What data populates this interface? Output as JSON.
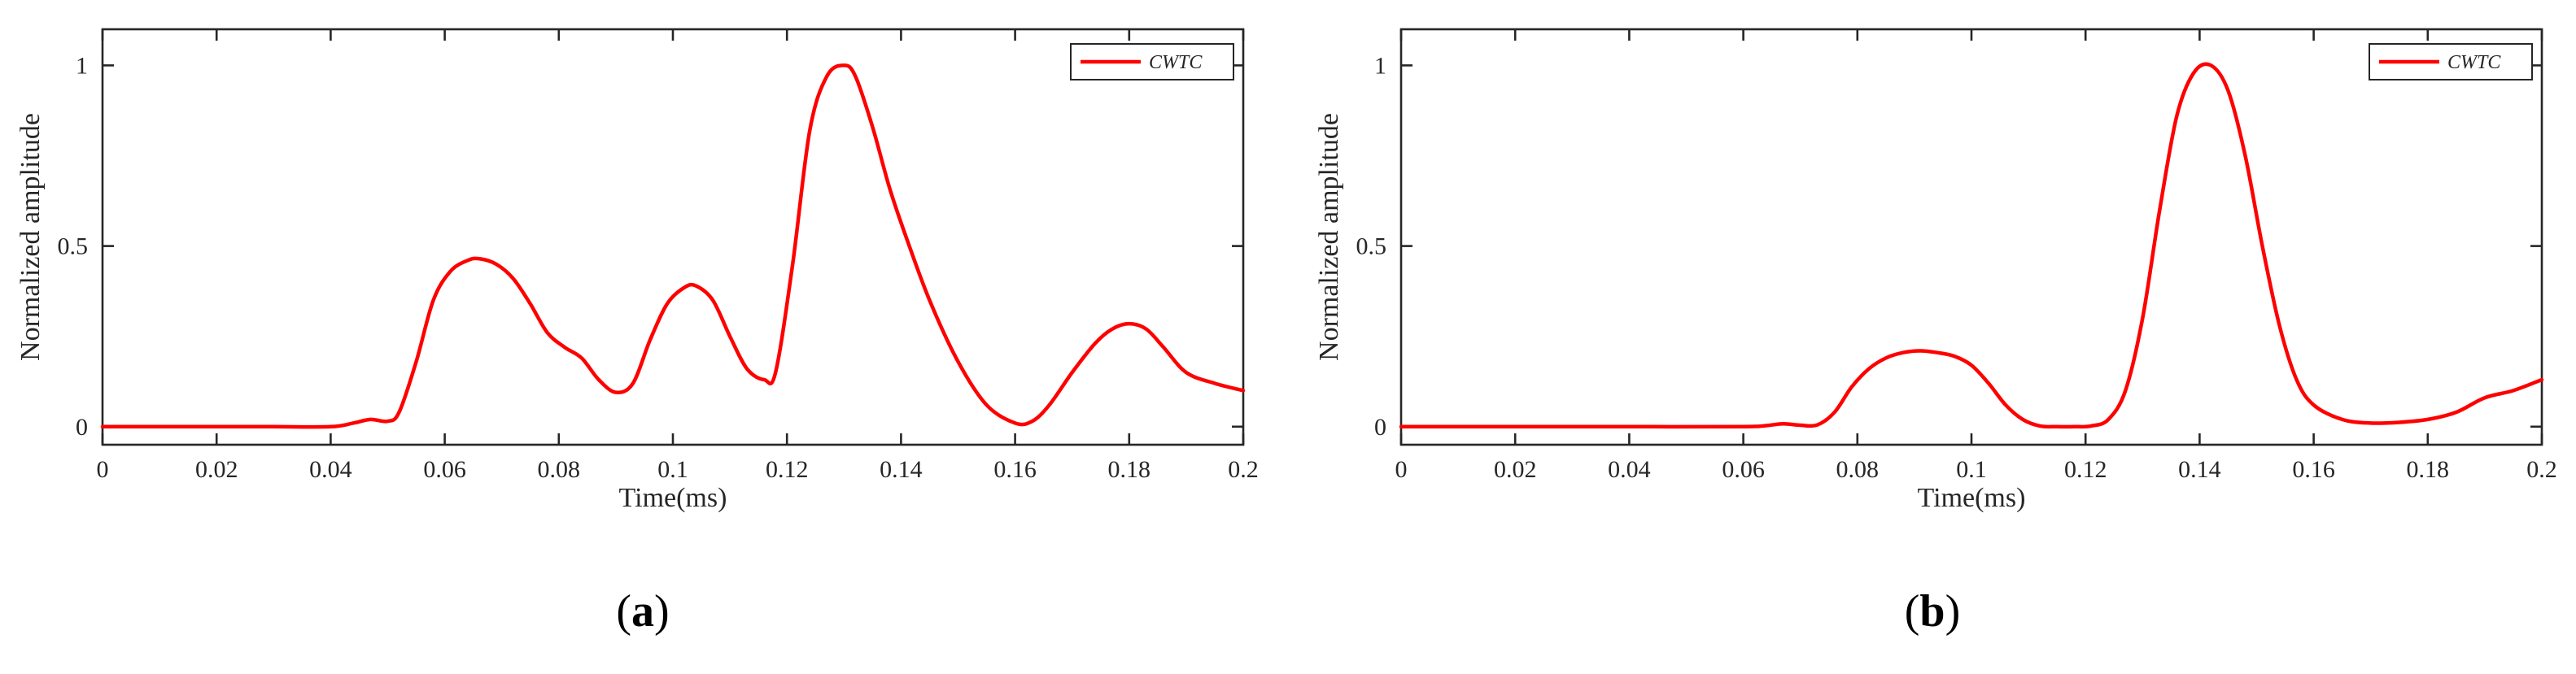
{
  "chart_data": [
    {
      "type": "line",
      "panel_label": "a",
      "xlabel": "Time(ms)",
      "ylabel": "Normalized amplitude",
      "xlim": [
        0,
        0.2
      ],
      "ylim": [
        -0.05,
        1.1
      ],
      "xticks": [
        "0",
        "0.02",
        "0.04",
        "0.06",
        "0.08",
        "0.1",
        "0.12",
        "0.14",
        "0.16",
        "0.18",
        "0.2"
      ],
      "yticks": [
        "0",
        "0.5",
        "1"
      ],
      "legend_position": "top-right",
      "series": [
        {
          "name": "CWTC",
          "color": "#ff0000",
          "x": [
            0,
            0.01,
            0.02,
            0.03,
            0.04,
            0.044,
            0.047,
            0.05,
            0.052,
            0.055,
            0.058,
            0.061,
            0.064,
            0.066,
            0.069,
            0.072,
            0.075,
            0.078,
            0.081,
            0.084,
            0.087,
            0.09,
            0.093,
            0.096,
            0.099,
            0.102,
            0.104,
            0.107,
            0.11,
            0.113,
            0.116,
            0.118,
            0.121,
            0.124,
            0.127,
            0.13,
            0.132,
            0.135,
            0.138,
            0.141,
            0.145,
            0.15,
            0.155,
            0.16,
            0.163,
            0.166,
            0.17,
            0.174,
            0.177,
            0.18,
            0.183,
            0.186,
            0.19,
            0.195,
            0.2
          ],
          "y": [
            0,
            0,
            0,
            0,
            0,
            0.01,
            0.02,
            0.015,
            0.04,
            0.18,
            0.35,
            0.43,
            0.46,
            0.465,
            0.45,
            0.41,
            0.34,
            0.26,
            0.22,
            0.19,
            0.13,
            0.095,
            0.12,
            0.24,
            0.34,
            0.385,
            0.39,
            0.35,
            0.25,
            0.16,
            0.13,
            0.15,
            0.45,
            0.82,
            0.97,
            1.0,
            0.97,
            0.83,
            0.66,
            0.52,
            0.35,
            0.18,
            0.06,
            0.01,
            0.015,
            0.06,
            0.15,
            0.23,
            0.27,
            0.285,
            0.27,
            0.22,
            0.15,
            0.12,
            0.1
          ]
        }
      ]
    },
    {
      "type": "line",
      "panel_label": "b",
      "xlabel": "Time(ms)",
      "ylabel": "Normalized amplitude",
      "xlim": [
        0,
        0.2
      ],
      "ylim": [
        -0.05,
        1.1
      ],
      "xticks": [
        "0",
        "0.02",
        "0.04",
        "0.06",
        "0.08",
        "0.1",
        "0.12",
        "0.14",
        "0.16",
        "0.18",
        "0.2"
      ],
      "yticks": [
        "0",
        "0.5",
        "1"
      ],
      "legend_position": "top-right",
      "series": [
        {
          "name": "CWTC",
          "color": "#ff0000",
          "x": [
            0,
            0.02,
            0.04,
            0.06,
            0.064,
            0.067,
            0.07,
            0.073,
            0.076,
            0.079,
            0.082,
            0.085,
            0.088,
            0.091,
            0.094,
            0.097,
            0.1,
            0.103,
            0.106,
            0.109,
            0.112,
            0.115,
            0.118,
            0.121,
            0.124,
            0.127,
            0.13,
            0.133,
            0.136,
            0.139,
            0.142,
            0.145,
            0.148,
            0.151,
            0.154,
            0.157,
            0.16,
            0.165,
            0.17,
            0.175,
            0.18,
            0.185,
            0.19,
            0.195,
            0.2
          ],
          "y": [
            0,
            0,
            0,
            0,
            0.003,
            0.008,
            0.004,
            0.005,
            0.04,
            0.11,
            0.16,
            0.19,
            0.205,
            0.21,
            0.205,
            0.195,
            0.17,
            0.12,
            0.06,
            0.02,
            0.002,
            0.0,
            0.0,
            0.002,
            0.02,
            0.1,
            0.3,
            0.6,
            0.86,
            0.98,
            1.0,
            0.93,
            0.75,
            0.5,
            0.28,
            0.13,
            0.06,
            0.02,
            0.01,
            0.012,
            0.02,
            0.04,
            0.08,
            0.1,
            0.13
          ]
        }
      ]
    }
  ]
}
